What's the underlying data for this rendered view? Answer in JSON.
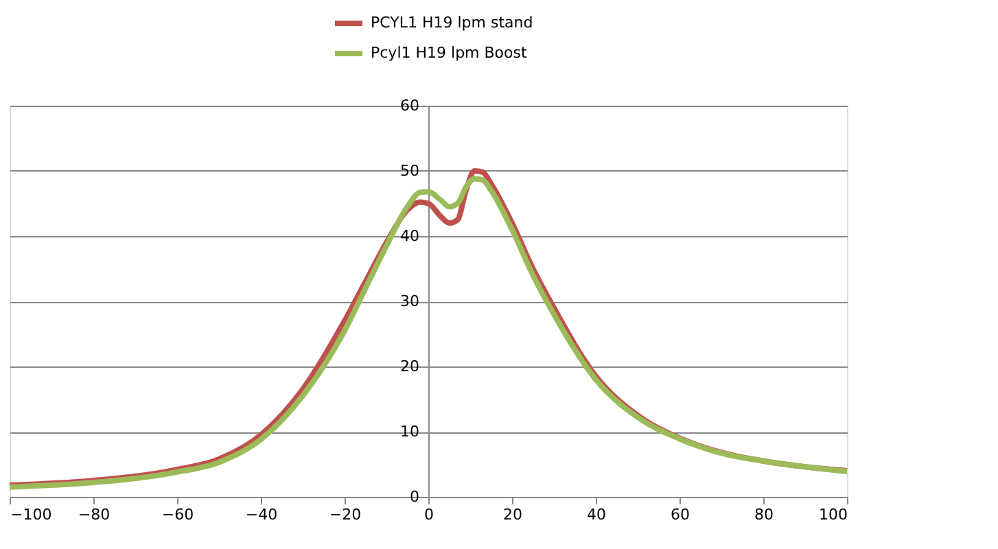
{
  "chart_data": {
    "type": "line",
    "xlim": [
      -100,
      100
    ],
    "xticks": [
      -100,
      -80,
      -60,
      -40,
      -20,
      0,
      20,
      40,
      60,
      80,
      100
    ],
    "ylim": [
      0,
      60
    ],
    "yticks": [
      0,
      10,
      20,
      30,
      40,
      50,
      60
    ],
    "grid": "y",
    "legend": "top",
    "marker": "none",
    "line_style": "solid",
    "x": [
      -100,
      -80,
      -60,
      -50,
      -40,
      -30,
      -20,
      -15,
      -10,
      -5,
      -2,
      0,
      3,
      5,
      7,
      9,
      11,
      13,
      15,
      20,
      25,
      30,
      40,
      50,
      60,
      70,
      80,
      90,
      100
    ],
    "series": [
      {
        "name": "PCYL1 H19 lpm stand",
        "color": "#c0504d",
        "values": [
          1.8,
          2.5,
          4.2,
          5.8,
          9.5,
          16.5,
          27,
          33,
          39,
          44,
          45.2,
          45,
          43,
          42,
          42.5,
          47,
          50,
          49.8,
          48,
          42,
          35,
          29,
          18.5,
          12.5,
          9,
          6.8,
          5.5,
          4.6,
          4
        ]
      },
      {
        "name": "Pcyl1 H19 lpm Boost",
        "color": "#9bbb59",
        "values": [
          1.5,
          2.2,
          3.8,
          5.3,
          8.8,
          15.5,
          25.5,
          32,
          38.5,
          44.5,
          46.7,
          46.8,
          45.5,
          44.5,
          45,
          47.5,
          48.8,
          48.6,
          47,
          41,
          34,
          28,
          18,
          12.2,
          8.9,
          6.7,
          5.5,
          4.6,
          3.9
        ]
      }
    ]
  }
}
